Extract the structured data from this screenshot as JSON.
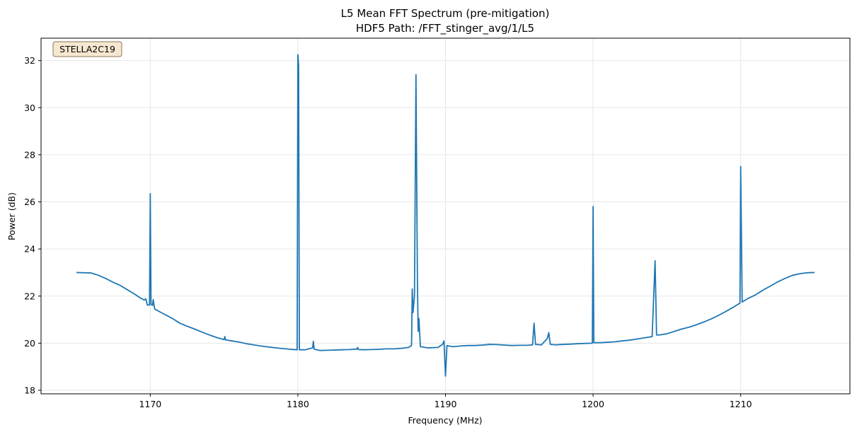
{
  "chart_data": {
    "type": "line",
    "title": "L5 Mean FFT Spectrum (pre-mitigation)",
    "subtitle": "HDF5 Path: /FFT_stinger_avg/1/L5",
    "xlabel": "Frequency (MHz)",
    "ylabel": "Power (dB)",
    "xlim": [
      1162.6,
      1217.4
    ],
    "ylim": [
      17.85,
      32.95
    ],
    "xticks": [
      1170,
      1180,
      1190,
      1200,
      1210
    ],
    "yticks": [
      18,
      20,
      22,
      24,
      26,
      28,
      30,
      32
    ],
    "grid": true,
    "annotation": "STELLA2C19",
    "line_color": "#1f77b4",
    "series": [
      {
        "values": [
          [
            1165.0,
            23.0
          ],
          [
            1165.5,
            22.99
          ],
          [
            1166.0,
            22.98
          ],
          [
            1166.5,
            22.88
          ],
          [
            1167.0,
            22.74
          ],
          [
            1167.5,
            22.58
          ],
          [
            1168.0,
            22.44
          ],
          [
            1168.5,
            22.25
          ],
          [
            1169.0,
            22.06
          ],
          [
            1169.3,
            21.93
          ],
          [
            1169.6,
            21.83
          ],
          [
            1169.7,
            21.88
          ],
          [
            1169.8,
            21.62
          ],
          [
            1169.95,
            21.62
          ],
          [
            1170.0,
            26.35
          ],
          [
            1170.05,
            21.65
          ],
          [
            1170.15,
            21.6
          ],
          [
            1170.2,
            21.85
          ],
          [
            1170.3,
            21.45
          ],
          [
            1170.8,
            21.28
          ],
          [
            1171.5,
            21.05
          ],
          [
            1172.0,
            20.85
          ],
          [
            1172.5,
            20.72
          ],
          [
            1173.0,
            20.6
          ],
          [
            1173.5,
            20.47
          ],
          [
            1174.0,
            20.35
          ],
          [
            1174.5,
            20.24
          ],
          [
            1175.0,
            20.15
          ],
          [
            1175.05,
            20.28
          ],
          [
            1175.1,
            20.14
          ],
          [
            1175.5,
            20.1
          ],
          [
            1176.0,
            20.05
          ],
          [
            1176.5,
            19.98
          ],
          [
            1177.0,
            19.93
          ],
          [
            1177.5,
            19.88
          ],
          [
            1178.0,
            19.84
          ],
          [
            1178.5,
            19.8
          ],
          [
            1179.0,
            19.77
          ],
          [
            1179.5,
            19.74
          ],
          [
            1179.95,
            19.72
          ],
          [
            1180.0,
            32.25
          ],
          [
            1180.05,
            31.8
          ],
          [
            1180.1,
            19.72
          ],
          [
            1180.5,
            19.72
          ],
          [
            1181.0,
            19.8
          ],
          [
            1181.05,
            20.08
          ],
          [
            1181.1,
            19.75
          ],
          [
            1181.5,
            19.69
          ],
          [
            1182.0,
            19.7
          ],
          [
            1182.5,
            19.71
          ],
          [
            1183.0,
            19.72
          ],
          [
            1183.5,
            19.73
          ],
          [
            1184.0,
            19.75
          ],
          [
            1184.05,
            19.82
          ],
          [
            1184.1,
            19.73
          ],
          [
            1184.5,
            19.72
          ],
          [
            1185.0,
            19.73
          ],
          [
            1185.5,
            19.74
          ],
          [
            1186.0,
            19.76
          ],
          [
            1186.5,
            19.76
          ],
          [
            1187.0,
            19.78
          ],
          [
            1187.5,
            19.82
          ],
          [
            1187.7,
            19.9
          ],
          [
            1187.75,
            22.3
          ],
          [
            1187.8,
            21.3
          ],
          [
            1187.9,
            22.0
          ],
          [
            1188.0,
            31.4
          ],
          [
            1188.1,
            22.5
          ],
          [
            1188.15,
            20.5
          ],
          [
            1188.2,
            21.05
          ],
          [
            1188.3,
            19.85
          ],
          [
            1188.8,
            19.8
          ],
          [
            1189.5,
            19.82
          ],
          [
            1189.8,
            19.95
          ],
          [
            1189.9,
            20.1
          ],
          [
            1190.0,
            18.6
          ],
          [
            1190.1,
            19.9
          ],
          [
            1190.5,
            19.85
          ],
          [
            1191.0,
            19.88
          ],
          [
            1191.5,
            19.9
          ],
          [
            1192.0,
            19.9
          ],
          [
            1192.5,
            19.92
          ],
          [
            1193.0,
            19.95
          ],
          [
            1193.5,
            19.94
          ],
          [
            1194.0,
            19.92
          ],
          [
            1194.5,
            19.9
          ],
          [
            1195.0,
            19.91
          ],
          [
            1195.5,
            19.91
          ],
          [
            1195.9,
            19.93
          ],
          [
            1196.0,
            20.85
          ],
          [
            1196.1,
            19.95
          ],
          [
            1196.5,
            19.93
          ],
          [
            1196.9,
            20.2
          ],
          [
            1197.0,
            20.45
          ],
          [
            1197.1,
            19.95
          ],
          [
            1197.5,
            19.93
          ],
          [
            1198.0,
            19.95
          ],
          [
            1198.5,
            19.96
          ],
          [
            1199.0,
            19.98
          ],
          [
            1199.5,
            19.99
          ],
          [
            1199.95,
            20.0
          ],
          [
            1200.0,
            25.8
          ],
          [
            1200.05,
            20.02
          ],
          [
            1200.5,
            20.02
          ],
          [
            1201.0,
            20.04
          ],
          [
            1201.5,
            20.06
          ],
          [
            1202.0,
            20.1
          ],
          [
            1202.5,
            20.13
          ],
          [
            1203.0,
            20.18
          ],
          [
            1203.5,
            20.23
          ],
          [
            1204.0,
            20.28
          ],
          [
            1204.2,
            23.5
          ],
          [
            1204.3,
            20.35
          ],
          [
            1204.5,
            20.35
          ],
          [
            1205.0,
            20.4
          ],
          [
            1205.5,
            20.5
          ],
          [
            1206.0,
            20.6
          ],
          [
            1206.5,
            20.68
          ],
          [
            1207.0,
            20.78
          ],
          [
            1207.5,
            20.9
          ],
          [
            1208.0,
            21.03
          ],
          [
            1208.5,
            21.18
          ],
          [
            1209.0,
            21.35
          ],
          [
            1209.5,
            21.53
          ],
          [
            1209.95,
            21.7
          ],
          [
            1210.0,
            27.5
          ],
          [
            1210.1,
            21.75
          ],
          [
            1210.5,
            21.9
          ],
          [
            1211.0,
            22.05
          ],
          [
            1211.5,
            22.25
          ],
          [
            1212.0,
            22.42
          ],
          [
            1212.5,
            22.6
          ],
          [
            1213.0,
            22.75
          ],
          [
            1213.5,
            22.88
          ],
          [
            1214.0,
            22.95
          ],
          [
            1214.5,
            22.99
          ],
          [
            1215.0,
            23.0
          ]
        ]
      }
    ]
  }
}
